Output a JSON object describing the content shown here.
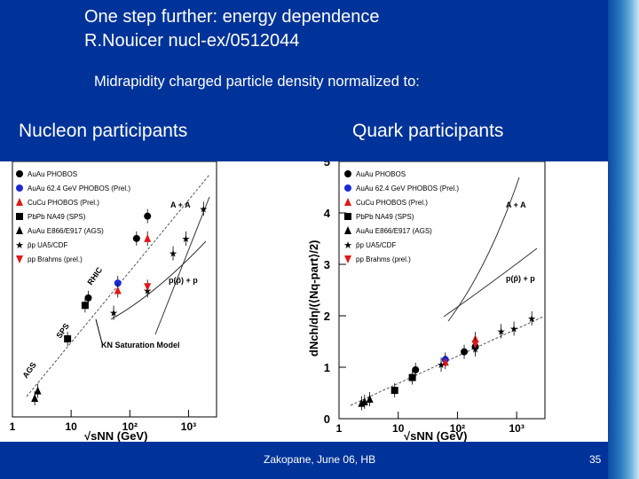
{
  "slide": {
    "title_line1": "One step further: energy dependence",
    "title_line2": "R.Nouicer nucl-ex/0512044",
    "subtitle": "Midrapidity charged particle density normalized to:",
    "left_label": "Nucleon participants",
    "right_label": "Quark participants",
    "footer": "Zakopane, June 06, HB",
    "page_number": "35",
    "colors": {
      "band": "#003399",
      "text": "#ffffff"
    }
  },
  "chart_data": [
    {
      "type": "scatter",
      "title": "",
      "xlabel": "√sNN (GeV)",
      "ylabel": "",
      "x_scale": "log",
      "xlim": [
        1,
        3000
      ],
      "x_ticks": [
        "1",
        "10",
        "10²",
        "10³"
      ],
      "legend": [
        "AuAu PHOBOS",
        "AuAu 62.4 GeV PHOBOS (Prel.)",
        "CuCu PHOBOS (Prel.)",
        "PbPb NA49 (SPS)",
        "AuAu E866/E917 (AGS)",
        "p̄p UA5/CDF",
        "pp Brahms (prel.)"
      ],
      "annotations": [
        "A + A",
        "p(p̄) + p",
        "RHIC",
        "SPS",
        "AGS",
        "KN Saturation Model"
      ],
      "series": [
        {
          "name": "AuAu PHOBOS",
          "x": [
            19.6,
            130,
            200
          ],
          "y": [
            2.4,
            3.2,
            3.5
          ]
        },
        {
          "name": "AuAu 62.4 GeV PHOBOS (Prel.)",
          "x": [
            62.4
          ],
          "y": [
            2.6
          ]
        },
        {
          "name": "CuCu PHOBOS (Prel.)",
          "x": [
            62.4,
            200
          ],
          "y": [
            2.5,
            3.2
          ]
        },
        {
          "name": "PbPb NA49 (SPS)",
          "x": [
            17.3,
            8.7
          ],
          "y": [
            2.3,
            1.85
          ]
        },
        {
          "name": "AuAu E866/E917 (AGS)",
          "x": [
            2.4,
            2.7
          ],
          "y": [
            1.05,
            1.15
          ]
        },
        {
          "name": "p̄p UA5/CDF",
          "x": [
            53,
            200,
            546,
            900,
            1800
          ],
          "y": [
            2.2,
            2.5,
            3.0,
            3.2,
            3.6
          ]
        },
        {
          "name": "pp Brahms (prel.)",
          "x": [
            200
          ],
          "y": [
            2.55
          ]
        }
      ]
    },
    {
      "type": "scatter",
      "title": "",
      "xlabel": "√sNN (GeV)",
      "ylabel": "dNch/dη/(⟨Nq-part⟩/2)",
      "x_scale": "log",
      "xlim": [
        1,
        3000
      ],
      "ylim": [
        0,
        5
      ],
      "x_ticks": [
        "1",
        "10",
        "10²",
        "10³"
      ],
      "y_ticks": [
        "0",
        "1",
        "2",
        "3",
        "4",
        "5"
      ],
      "legend": [
        "AuAu PHOBOS",
        "AuAu 62.4 GeV PHOBOS (Prel.)",
        "CuCu PHOBOS (Prel.)",
        "PbPb NA49 (SPS)",
        "AuAu E866/E917 (AGS)",
        "p̄p UA5/CDF",
        "pp Brahms (prel.)"
      ],
      "annotations": [
        "A + A",
        "p(p̄) + p"
      ],
      "series": [
        {
          "name": "AuAu PHOBOS",
          "x": [
            19.6,
            130,
            200
          ],
          "y": [
            0.95,
            1.3,
            1.4
          ]
        },
        {
          "name": "AuAu 62.4 GeV PHOBOS (Prel.)",
          "x": [
            62.4
          ],
          "y": [
            1.15
          ]
        },
        {
          "name": "CuCu PHOBOS (Prel.)",
          "x": [
            62.4,
            200
          ],
          "y": [
            1.1,
            1.55
          ]
        },
        {
          "name": "PbPb NA49 (SPS)",
          "x": [
            17.3,
            8.7
          ],
          "y": [
            0.8,
            0.55
          ]
        },
        {
          "name": "AuAu E866/E917 (AGS)",
          "x": [
            2.4,
            2.7,
            3.3
          ],
          "y": [
            0.3,
            0.33,
            0.38
          ]
        },
        {
          "name": "p̄p UA5/CDF",
          "x": [
            53,
            200,
            546,
            900,
            1800
          ],
          "y": [
            1.05,
            1.35,
            1.7,
            1.75,
            1.95
          ]
        },
        {
          "name": "pp Brahms (prel.)",
          "x": [
            200
          ],
          "y": [
            1.45
          ]
        }
      ]
    }
  ]
}
